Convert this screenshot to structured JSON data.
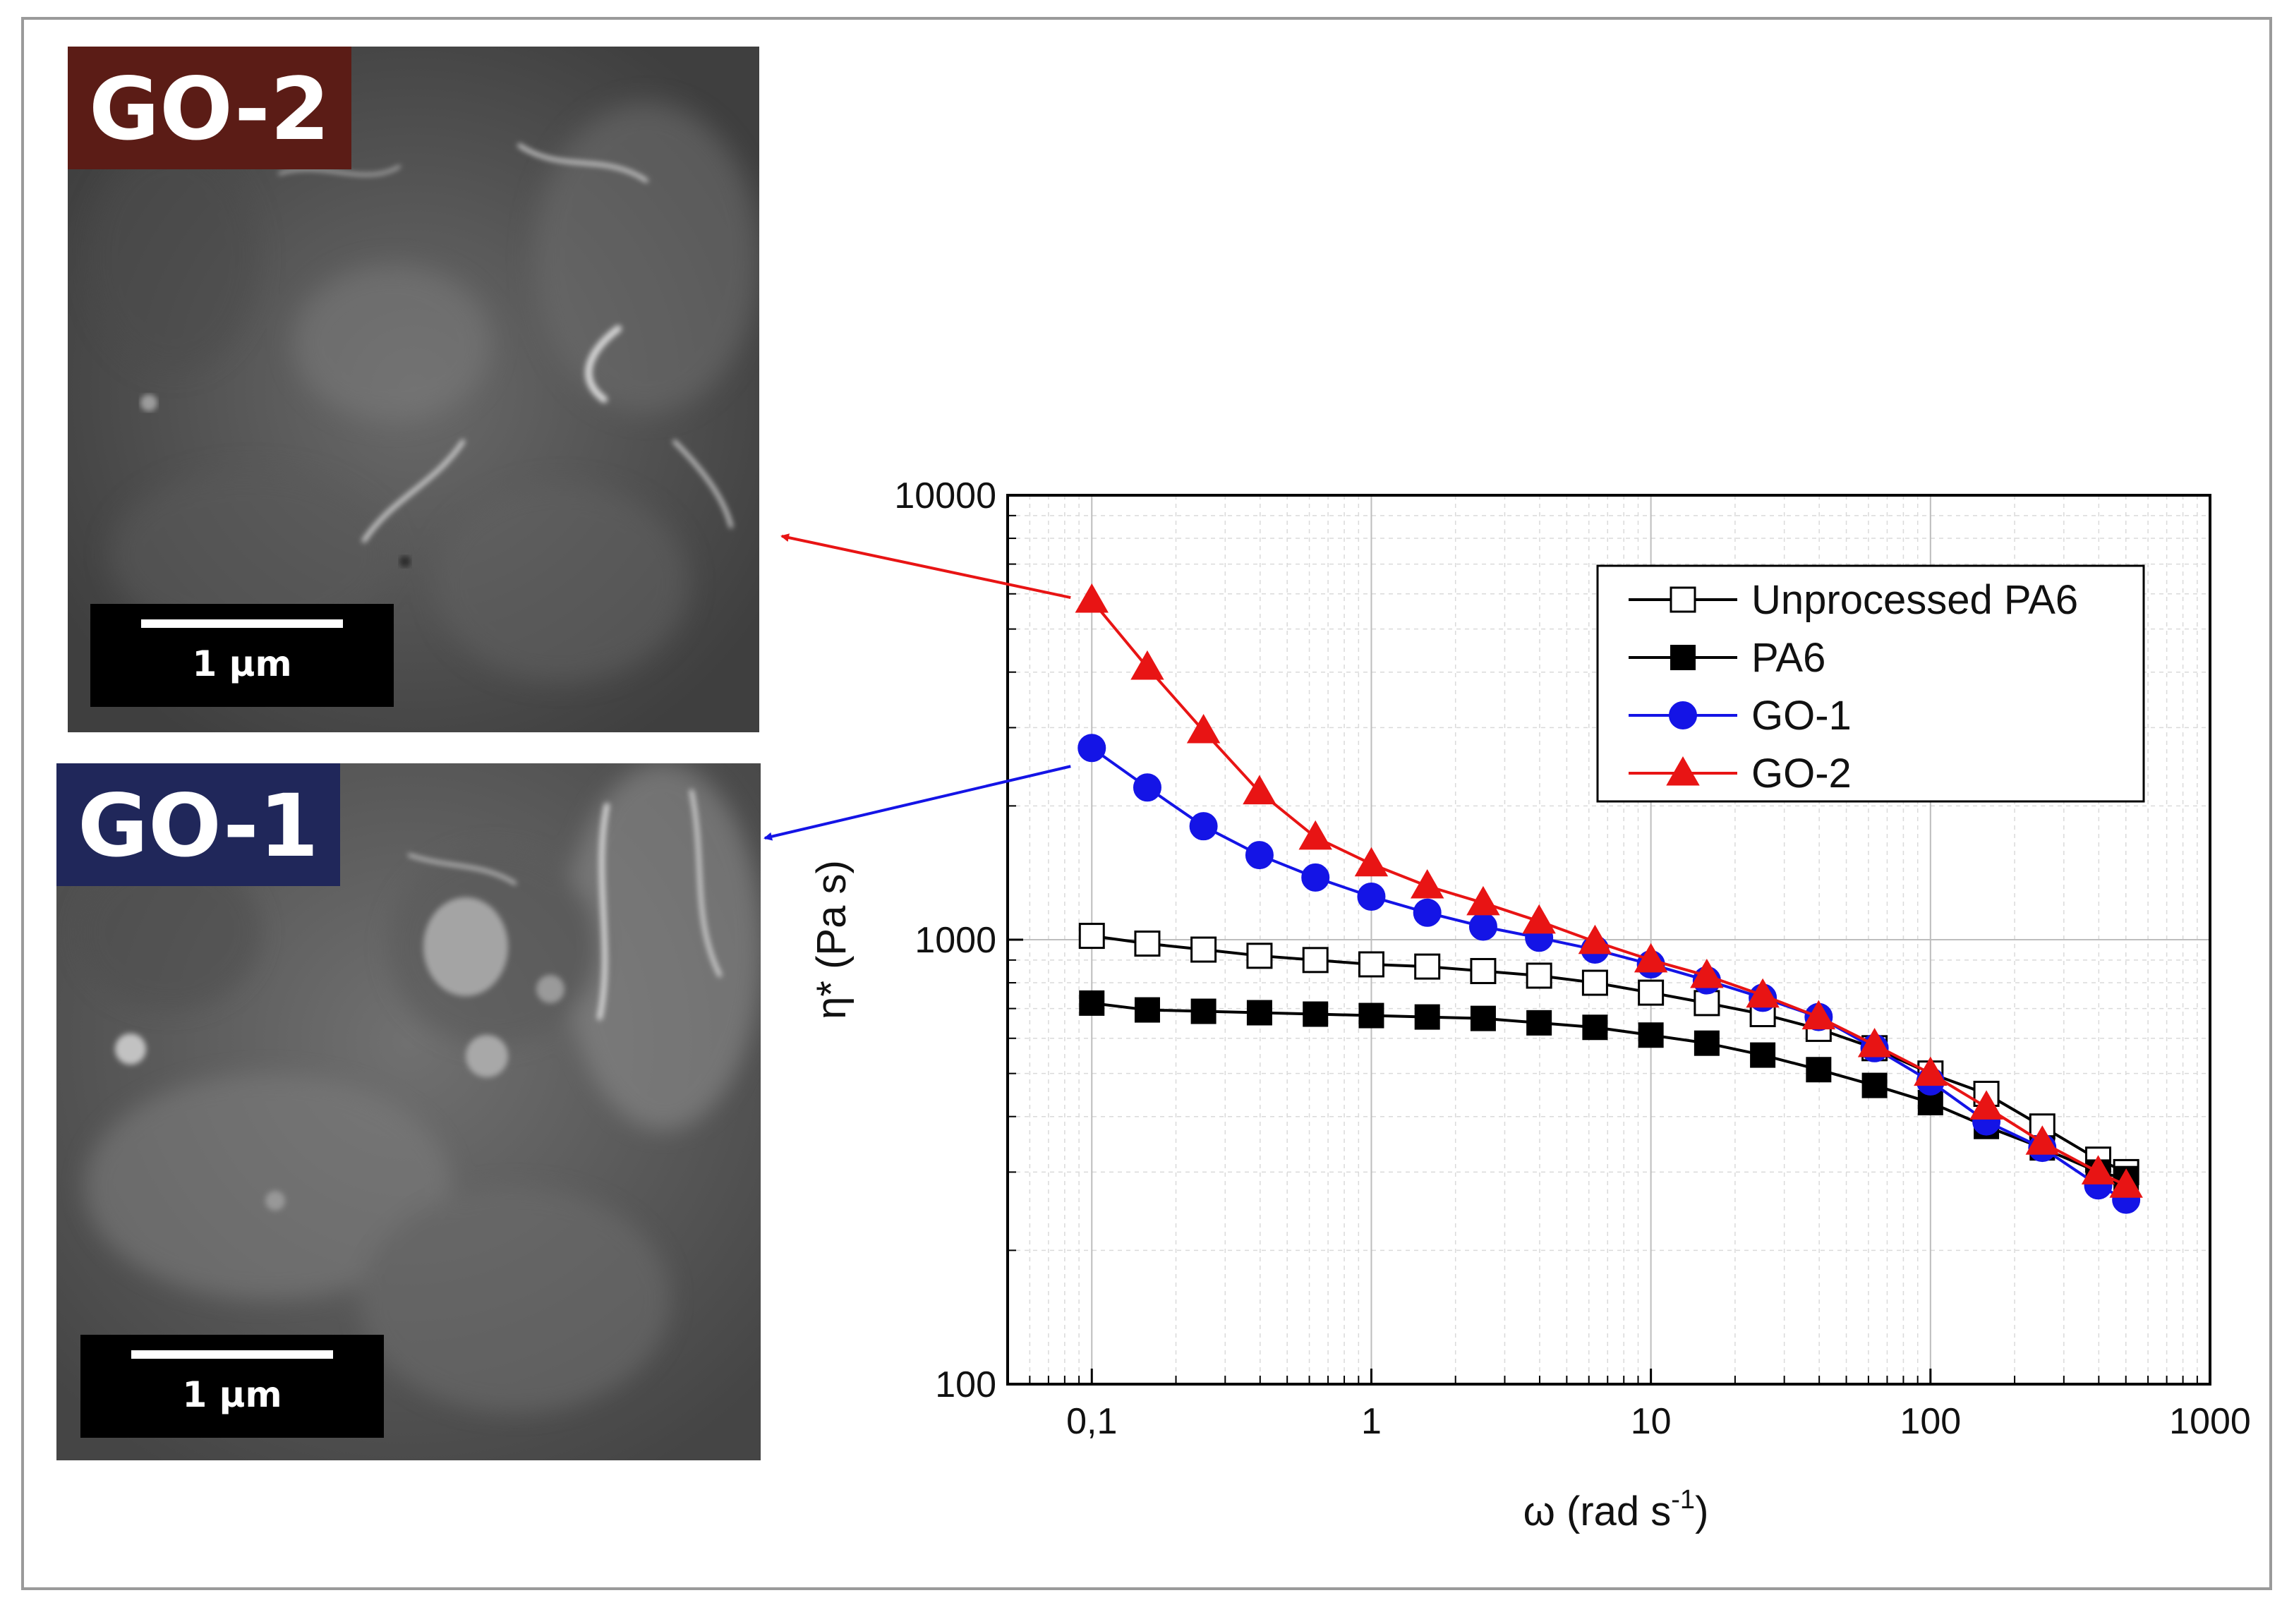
{
  "panels": [
    {
      "id": "go2",
      "label": "GO-2",
      "scale_text": "1 µm",
      "label_color": "#5b1c16"
    },
    {
      "id": "go1",
      "label": "GO-1",
      "scale_text": "1 µm",
      "label_color": "#20275a"
    }
  ],
  "chart_data": {
    "type": "line",
    "xlabel": "ω (rad s",
    "xlabel_sup": "-1",
    "xlabel_end": ")",
    "ylabel": "η* (Pa s)",
    "xscale": "log",
    "yscale": "log",
    "xlim": [
      0.05,
      1000
    ],
    "ylim": [
      100,
      10000
    ],
    "x_ticks": [
      0.1,
      1,
      10,
      100,
      1000
    ],
    "x_tick_labels": [
      "0,1",
      "1",
      "10",
      "100",
      "1000"
    ],
    "y_ticks": [
      100,
      1000,
      10000
    ],
    "y_tick_labels": [
      "100",
      "1000",
      "10000"
    ],
    "grid": true,
    "legend_position": "top-right",
    "x": [
      0.1,
      0.158,
      0.251,
      0.398,
      0.631,
      1,
      1.585,
      2.512,
      3.981,
      6.31,
      10,
      15.85,
      25.12,
      39.81,
      63.1,
      100,
      158.5,
      251.2,
      398.1,
      501.2
    ],
    "series": [
      {
        "name": "Unprocessed PA6",
        "color": "#000000",
        "marker": "square-open",
        "values": [
          1020,
          980,
          950,
          920,
          900,
          880,
          870,
          850,
          830,
          800,
          760,
          720,
          680,
          630,
          570,
          500,
          450,
          380,
          320,
          300
        ]
      },
      {
        "name": "PA6",
        "color": "#000000",
        "marker": "square-filled",
        "values": [
          720,
          695,
          690,
          685,
          680,
          675,
          670,
          665,
          650,
          635,
          610,
          585,
          550,
          510,
          470,
          430,
          380,
          340,
          300,
          290
        ]
      },
      {
        "name": "GO-1",
        "color": "#1414e6",
        "marker": "circle-filled",
        "values": [
          2700,
          2200,
          1800,
          1550,
          1380,
          1250,
          1150,
          1070,
          1010,
          950,
          880,
          810,
          740,
          670,
          570,
          480,
          390,
          340,
          280,
          260
        ]
      },
      {
        "name": "GO-2",
        "color": "#e81414",
        "marker": "triangle-filled",
        "values": [
          5800,
          4100,
          2950,
          2150,
          1700,
          1480,
          1320,
          1210,
          1100,
          990,
          900,
          830,
          750,
          670,
          580,
          500,
          420,
          350,
          300,
          280
        ]
      }
    ]
  },
  "arrows": [
    {
      "from_series": "GO-2",
      "to_panel": "go2",
      "color": "#e81414"
    },
    {
      "from_series": "GO-1",
      "to_panel": "go1",
      "color": "#1414e6"
    }
  ]
}
